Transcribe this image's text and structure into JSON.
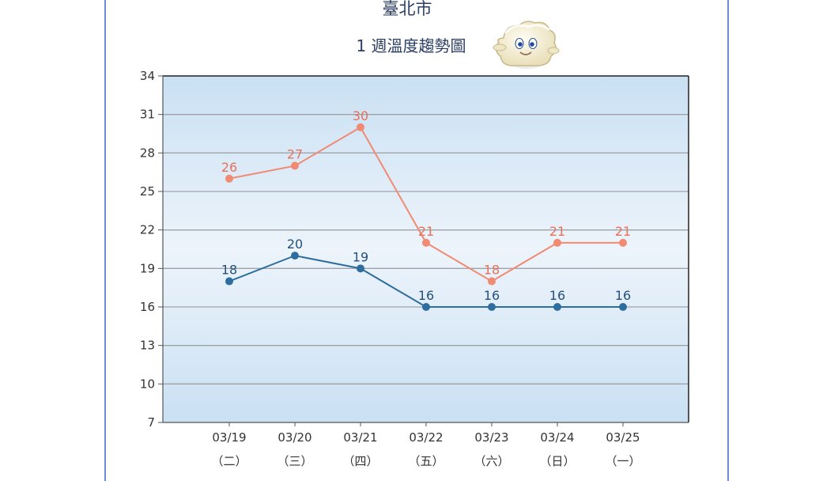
{
  "chart_data": {
    "type": "line",
    "title": "臺北市",
    "subtitle": "1 週溫度趨勢圖",
    "categories": [
      "03/19",
      "03/20",
      "03/21",
      "03/22",
      "03/23",
      "03/24",
      "03/25"
    ],
    "category_sub": [
      "（二）",
      "（三）",
      "（四）",
      "（五）",
      "（六）",
      "（日）",
      "（一）"
    ],
    "y_ticks": [
      7,
      10,
      13,
      16,
      19,
      22,
      25,
      28,
      31,
      34
    ],
    "ylim": [
      7,
      34
    ],
    "grid": true,
    "series": [
      {
        "values": [
          26,
          27,
          30,
          21,
          18,
          21,
          21
        ],
        "color": "#f08a73"
      },
      {
        "values": [
          18,
          20,
          19,
          16,
          16,
          16,
          16
        ],
        "color": "#2e6e9e"
      }
    ],
    "mascot_icon": "cloud-mascot-icon"
  }
}
